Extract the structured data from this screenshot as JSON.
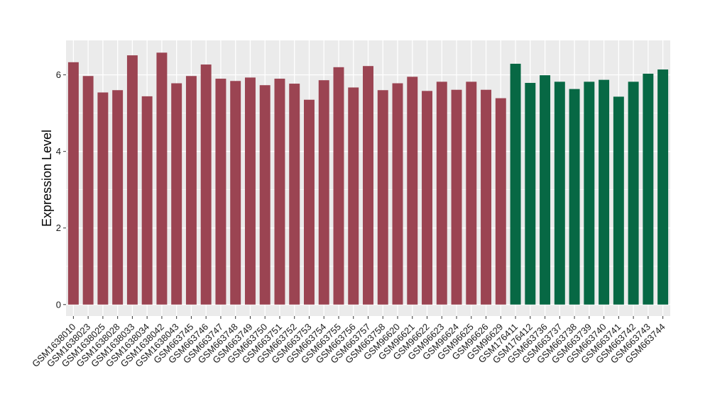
{
  "chart_data": {
    "type": "bar",
    "title": "",
    "xlabel": "",
    "ylabel": "Expression Level",
    "ylim": [
      -0.3,
      6.9
    ],
    "yticks": [
      0,
      2,
      4,
      6
    ],
    "grid": true,
    "panel_background": "#ebebeb",
    "grid_color": "#ffffff",
    "categories": [
      "GSM1638010",
      "GSM1638023",
      "GSM1638025",
      "GSM1638028",
      "GSM1638033",
      "GSM1638034",
      "GSM1638042",
      "GSM1638043",
      "GSM663745",
      "GSM663746",
      "GSM663747",
      "GSM663748",
      "GSM663749",
      "GSM663750",
      "GSM663751",
      "GSM663752",
      "GSM663753",
      "GSM663754",
      "GSM663755",
      "GSM663756",
      "GSM663757",
      "GSM663758",
      "GSM96620",
      "GSM96621",
      "GSM96622",
      "GSM96623",
      "GSM96624",
      "GSM96625",
      "GSM96626",
      "GSM96629",
      "GSM176411",
      "GSM176412",
      "GSM663736",
      "GSM663737",
      "GSM663738",
      "GSM663739",
      "GSM663740",
      "GSM663741",
      "GSM663742",
      "GSM663743",
      "GSM663744"
    ],
    "values": [
      6.33,
      5.97,
      5.54,
      5.6,
      6.51,
      5.44,
      6.58,
      5.78,
      5.97,
      6.27,
      5.9,
      5.84,
      5.93,
      5.73,
      5.9,
      5.77,
      5.35,
      5.86,
      6.2,
      5.67,
      6.23,
      5.6,
      5.78,
      5.95,
      5.58,
      5.82,
      5.61,
      5.82,
      5.61,
      5.39,
      6.29,
      5.79,
      5.99,
      5.82,
      5.63,
      5.82,
      5.87,
      5.43,
      5.82,
      6.03,
      6.14
    ],
    "groups": [
      "red",
      "red",
      "red",
      "red",
      "red",
      "red",
      "red",
      "red",
      "red",
      "red",
      "red",
      "red",
      "red",
      "red",
      "red",
      "red",
      "red",
      "red",
      "red",
      "red",
      "red",
      "red",
      "red",
      "red",
      "red",
      "red",
      "red",
      "red",
      "red",
      "red",
      "green",
      "green",
      "green",
      "green",
      "green",
      "green",
      "green",
      "green",
      "green",
      "green",
      "green"
    ],
    "colors": {
      "red": "#9b4452",
      "green": "#076844"
    }
  }
}
